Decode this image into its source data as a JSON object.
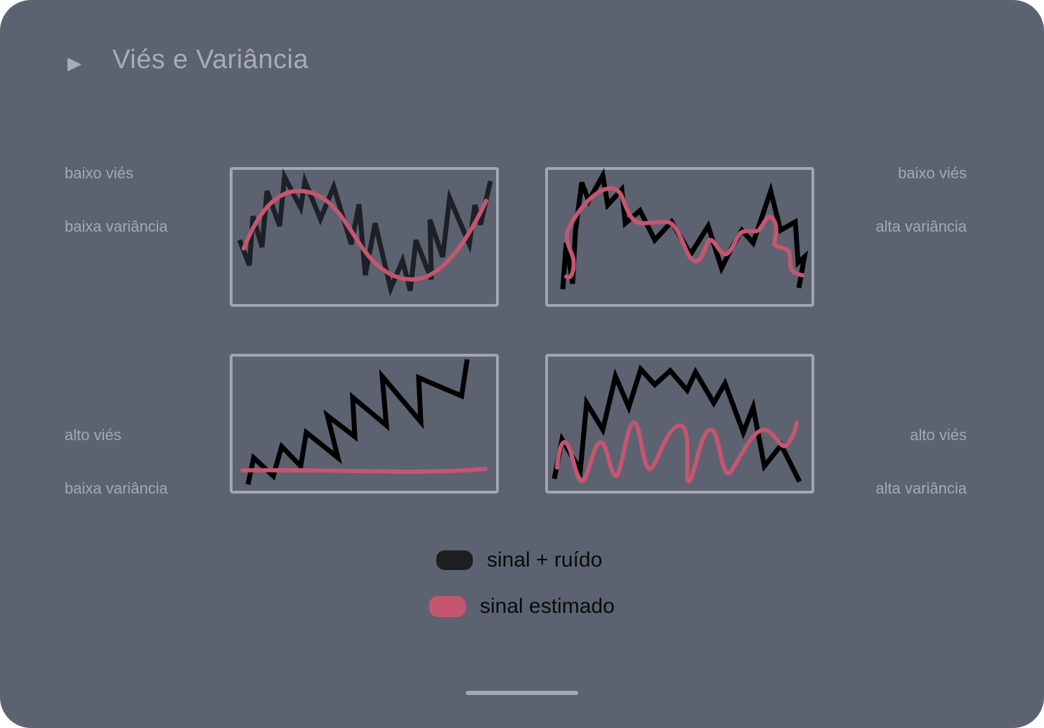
{
  "header": {
    "title": "Viés e Variância",
    "icon": "play-icon"
  },
  "quadrants": [
    {
      "id": "low-bias-low-variance",
      "bias_label": "baixo viés",
      "variance_label": "baixa variância"
    },
    {
      "id": "low-bias-high-variance",
      "bias_label": "baixo viés",
      "variance_label": "alta variância"
    },
    {
      "id": "high-bias-low-variance",
      "bias_label": "alto viés",
      "variance_label": "baixa variância"
    },
    {
      "id": "high-bias-high-variance",
      "bias_label": "alto viés",
      "variance_label": "alta variância"
    }
  ],
  "legend": {
    "items": [
      {
        "label": "sinal + ruído",
        "color": "#1c1e24"
      },
      {
        "label": "sinal estimado",
        "color": "#c4566f"
      }
    ]
  },
  "colors": {
    "background": "#5c6270",
    "panel_border": "#a3a6ae",
    "noisy_signal_panel1": "#1e2028",
    "noisy_signal": "#000000",
    "estimate": "#c4566f"
  }
}
